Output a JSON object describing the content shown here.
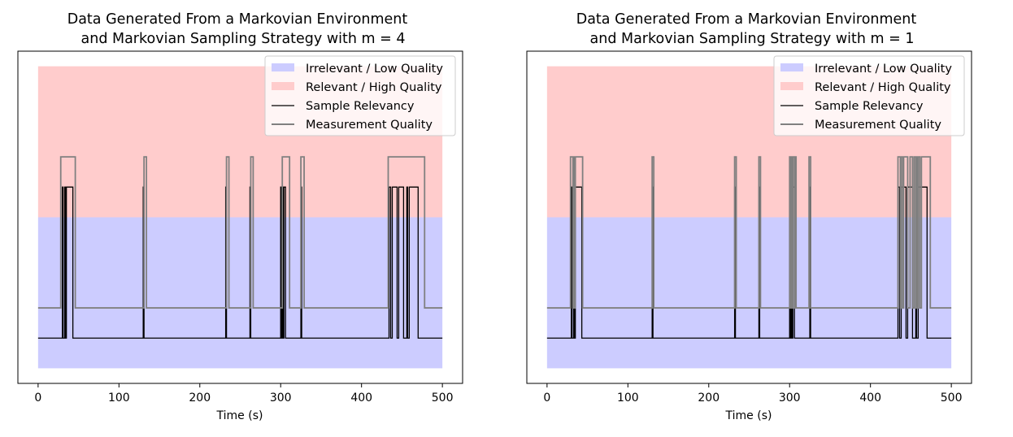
{
  "chart_data": [
    {
      "type": "line",
      "title_line1": "Data Generated From a Markovian Environment",
      "title_line2": "and Markovian Sampling Strategy with m = 4",
      "xlabel": "Time (s)",
      "ylabel": "",
      "xlim": [
        -25,
        525
      ],
      "ylim": [
        0,
        1.1
      ],
      "xticks": [
        0,
        100,
        200,
        300,
        400,
        500
      ],
      "yticks_shown": false,
      "legend_position": "top-right",
      "legend": [
        {
          "label": "Irrelevant / Low Quality",
          "kind": "patch",
          "color": "#ccccff"
        },
        {
          "label": "Relevant / High Quality",
          "kind": "patch",
          "color": "#ffcccc"
        },
        {
          "label": "Sample Relevancy",
          "kind": "line",
          "color": "#000000"
        },
        {
          "label": "Measurement Quality",
          "kind": "line",
          "color": "#808080"
        }
      ],
      "bands": [
        {
          "name": "Irrelevant / Low Quality",
          "x0": 0,
          "x1": 500,
          "y0": 0.05,
          "y1": 0.55,
          "color": "#ccccff"
        },
        {
          "name": "Relevant / High Quality",
          "x0": 0,
          "x1": 500,
          "y0": 0.55,
          "y1": 1.05,
          "color": "#ffcccc"
        }
      ],
      "series": [
        {
          "name": "Sample Relevancy",
          "color": "#000000",
          "low": 0.15,
          "high": 0.65,
          "high_intervals": [
            [
              30,
              31
            ],
            [
              33,
              34
            ],
            [
              35,
              43
            ],
            [
              130,
              131
            ],
            [
              232,
              233
            ],
            [
              262,
              263
            ],
            [
              300,
              301
            ],
            [
              302,
              303
            ],
            [
              304,
              306
            ],
            [
              325,
              326
            ],
            [
              434,
              436
            ],
            [
              438,
              444
            ],
            [
              446,
              452
            ],
            [
              456,
              457
            ],
            [
              459,
              470
            ]
          ]
        },
        {
          "name": "Measurement Quality",
          "color": "#808080",
          "low": 0.25,
          "high": 0.75,
          "high_intervals": [
            [
              28,
              46
            ],
            [
              131,
              134
            ],
            [
              233,
              236
            ],
            [
              263,
              266
            ],
            [
              302,
              311
            ],
            [
              325,
              329
            ],
            [
              433,
              478
            ]
          ]
        }
      ]
    },
    {
      "type": "line",
      "title_line1": "Data Generated From a Markovian Environment",
      "title_line2": "and Markovian Sampling Strategy with m = 1",
      "xlabel": "Time (s)",
      "ylabel": "",
      "xlim": [
        -25,
        525
      ],
      "ylim": [
        0,
        1.1
      ],
      "xticks": [
        0,
        100,
        200,
        300,
        400,
        500
      ],
      "yticks_shown": false,
      "legend_position": "top-right",
      "legend": [
        {
          "label": "Irrelevant / Low Quality",
          "kind": "patch",
          "color": "#ccccff"
        },
        {
          "label": "Relevant / High Quality",
          "kind": "patch",
          "color": "#ffcccc"
        },
        {
          "label": "Sample Relevancy",
          "kind": "line",
          "color": "#000000"
        },
        {
          "label": "Measurement Quality",
          "kind": "line",
          "color": "#808080"
        }
      ],
      "bands": [
        {
          "name": "Irrelevant / Low Quality",
          "x0": 0,
          "x1": 500,
          "y0": 0.05,
          "y1": 0.55,
          "color": "#ccccff"
        },
        {
          "name": "Relevant / High Quality",
          "x0": 0,
          "x1": 500,
          "y0": 0.55,
          "y1": 1.05,
          "color": "#ffcccc"
        }
      ],
      "series": [
        {
          "name": "Sample Relevancy",
          "color": "#000000",
          "low": 0.15,
          "high": 0.65,
          "high_intervals": [
            [
              30,
              31
            ],
            [
              33,
              34
            ],
            [
              35,
              43
            ],
            [
              130,
              131
            ],
            [
              232,
              233
            ],
            [
              262,
              263
            ],
            [
              300,
              301
            ],
            [
              302,
              303
            ],
            [
              304,
              306
            ],
            [
              325,
              326
            ],
            [
              434,
              436
            ],
            [
              438,
              444
            ],
            [
              446,
              452
            ],
            [
              456,
              457
            ],
            [
              459,
              470
            ]
          ]
        },
        {
          "name": "Measurement Quality",
          "color": "#808080",
          "low": 0.25,
          "high": 0.75,
          "high_intervals": [
            [
              29,
              32
            ],
            [
              33,
              34
            ],
            [
              35,
              44
            ],
            [
              130,
              132
            ],
            [
              232,
              234
            ],
            [
              262,
              264
            ],
            [
              300,
              301
            ],
            [
              302,
              303
            ],
            [
              304,
              306
            ],
            [
              307,
              308
            ],
            [
              324,
              326
            ],
            [
              434,
              437
            ],
            [
              438,
              440
            ],
            [
              441,
              446
            ],
            [
              449,
              452
            ],
            [
              454,
              456
            ],
            [
              457,
              458
            ],
            [
              459,
              461
            ],
            [
              463,
              474
            ]
          ]
        }
      ]
    }
  ]
}
